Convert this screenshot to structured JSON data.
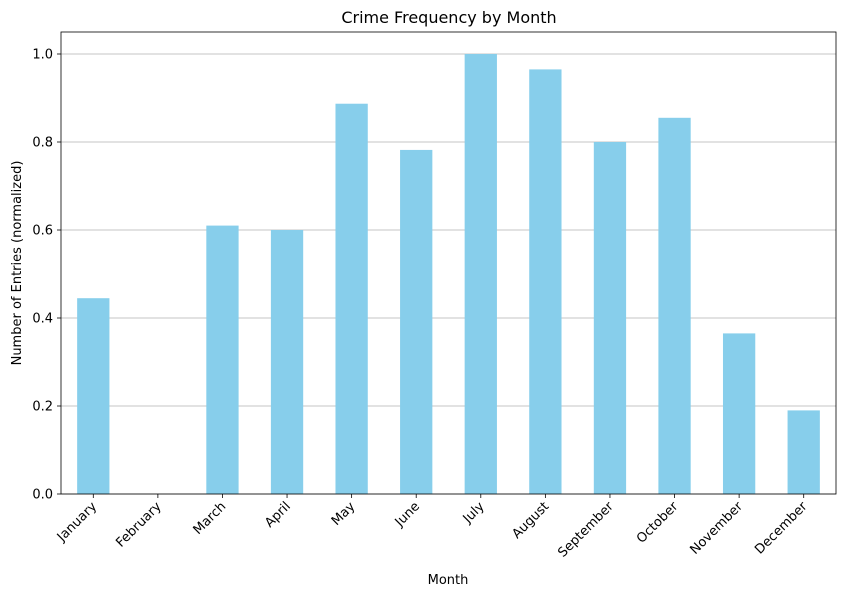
{
  "chart_data": {
    "type": "bar",
    "title": "Crime Frequency by Month",
    "xlabel": "Month",
    "ylabel": "Number of Entries (normalized)",
    "categories": [
      "January",
      "February",
      "March",
      "April",
      "May",
      "June",
      "July",
      "August",
      "September",
      "October",
      "November",
      "December"
    ],
    "values": [
      0.445,
      0.0,
      0.61,
      0.6,
      0.887,
      0.782,
      1.0,
      0.965,
      0.8,
      0.855,
      0.365,
      0.19
    ],
    "ylim": [
      0,
      1.05
    ],
    "yticks": [
      "0.0",
      "0.2",
      "0.4",
      "0.6",
      "0.8",
      "1.0"
    ],
    "ytick_values": [
      0.0,
      0.2,
      0.4,
      0.6,
      0.8,
      1.0
    ],
    "grid": "y-axis",
    "legend": "none",
    "bar_color": "#87ceeb",
    "grid_color": "#b0b0b0"
  }
}
